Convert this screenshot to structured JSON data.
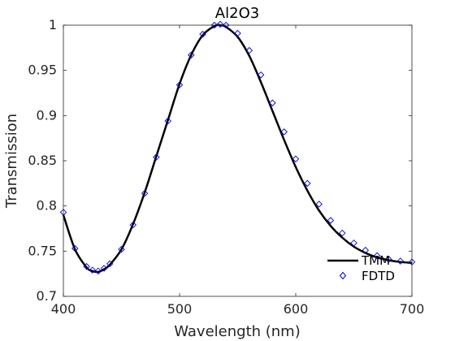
{
  "chart_data": {
    "type": "line",
    "title": "Al2O3",
    "xlabel": "Wavelength (nm)",
    "ylabel": "Transmission",
    "xlim": [
      400,
      700
    ],
    "ylim": [
      0.7,
      1.0
    ],
    "xticks": [
      400,
      500,
      600,
      700
    ],
    "xtick_labels": [
      "400",
      "500",
      "600",
      "700"
    ],
    "yticks": [
      0.7,
      0.75,
      0.8,
      0.85,
      0.9,
      0.95,
      1.0
    ],
    "ytick_labels": [
      "0.7",
      "0.75",
      "0.8",
      "0.85",
      "0.9",
      "0.95",
      "1"
    ],
    "grid": false,
    "legend_position": "bottom-right",
    "series": [
      {
        "name": "TMM",
        "style": "line",
        "color": "#000000",
        "x": [
          400,
          410,
          420,
          425,
          430,
          435,
          440,
          450,
          460,
          470,
          480,
          490,
          500,
          510,
          520,
          530,
          535,
          540,
          550,
          560,
          570,
          580,
          590,
          600,
          610,
          620,
          630,
          640,
          650,
          660,
          670,
          680,
          690,
          700
        ],
        "y": [
          0.79,
          0.752,
          0.732,
          0.728,
          0.727,
          0.73,
          0.735,
          0.752,
          0.78,
          0.815,
          0.855,
          0.895,
          0.935,
          0.967,
          0.989,
          0.999,
          1.0,
          0.998,
          0.987,
          0.966,
          0.937,
          0.905,
          0.873,
          0.843,
          0.817,
          0.795,
          0.778,
          0.765,
          0.755,
          0.748,
          0.743,
          0.74,
          0.738,
          0.737
        ]
      },
      {
        "name": "FDTD",
        "style": "marker",
        "marker": "diamond",
        "color": "#0000cc",
        "x": [
          400,
          410,
          420,
          425,
          430,
          435,
          440,
          450,
          460,
          470,
          480,
          490,
          500,
          510,
          520,
          530,
          535,
          540,
          550,
          560,
          570,
          580,
          590,
          600,
          610,
          620,
          630,
          640,
          650,
          660,
          670,
          680,
          690,
          700
        ],
        "y": [
          0.793,
          0.753,
          0.733,
          0.729,
          0.728,
          0.731,
          0.736,
          0.752,
          0.779,
          0.814,
          0.854,
          0.894,
          0.934,
          0.967,
          0.99,
          1.0,
          1.001,
          1.0,
          0.991,
          0.972,
          0.945,
          0.914,
          0.882,
          0.852,
          0.825,
          0.802,
          0.784,
          0.77,
          0.759,
          0.751,
          0.745,
          0.741,
          0.739,
          0.738
        ]
      }
    ]
  }
}
